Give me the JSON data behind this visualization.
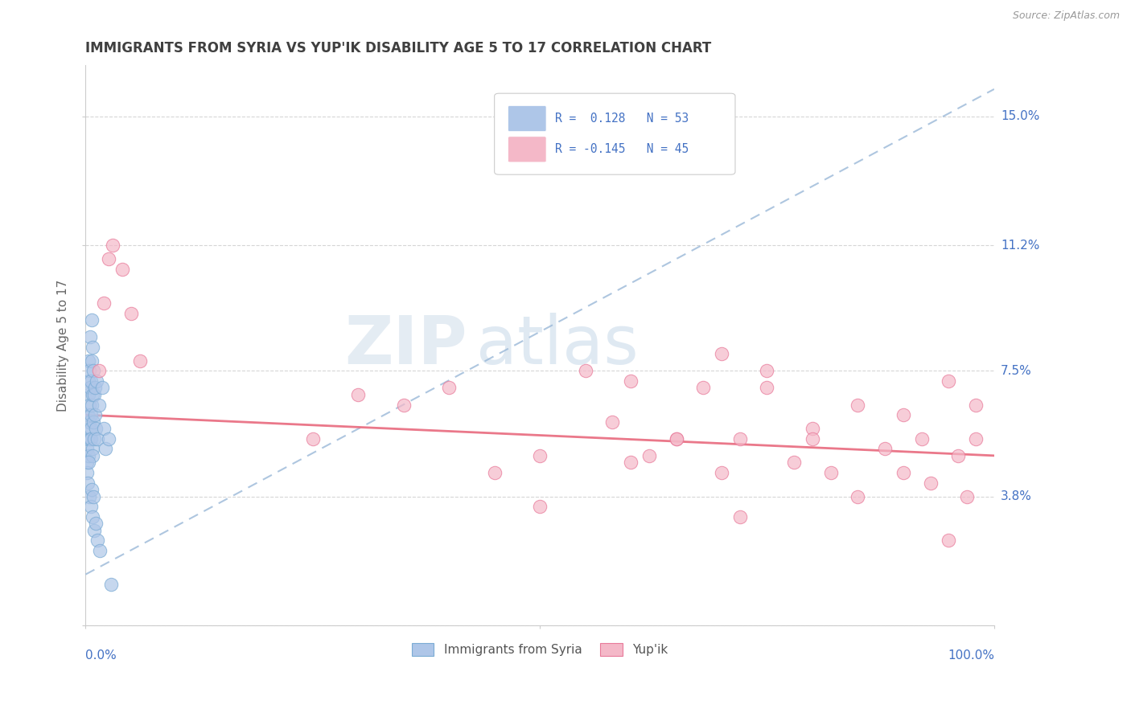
{
  "title": "IMMIGRANTS FROM SYRIA VS YUP'IK DISABILITY AGE 5 TO 17 CORRELATION CHART",
  "source": "Source: ZipAtlas.com",
  "ylabel": "Disability Age 5 to 17",
  "xlim": [
    0.0,
    100.0
  ],
  "ylim": [
    0.0,
    16.5
  ],
  "yticks": [
    0.0,
    3.8,
    7.5,
    11.2,
    15.0
  ],
  "ytick_labels": [
    "",
    "3.8%",
    "7.5%",
    "11.2%",
    "15.0%"
  ],
  "axis_label_color": "#4472c4",
  "blue_color": "#aec6e8",
  "blue_edge_color": "#7aabd4",
  "pink_color": "#f4b8c8",
  "pink_edge_color": "#e87a9a",
  "trend_blue_color": "#9ab8d8",
  "trend_pink_color": "#e8697d",
  "background_color": "#ffffff",
  "title_color": "#404040",
  "ylabel_color": "#666666",
  "watermark_zip_color": "#c8d8e8",
  "watermark_atlas_color": "#b8cce4",
  "blue_trend_start_y": 1.5,
  "blue_trend_end_y": 15.8,
  "pink_trend_start_y": 6.2,
  "pink_trend_end_y": 5.0,
  "syria_x": [
    0.15,
    0.18,
    0.22,
    0.25,
    0.28,
    0.3,
    0.32,
    0.35,
    0.38,
    0.4,
    0.42,
    0.45,
    0.48,
    0.5,
    0.52,
    0.55,
    0.58,
    0.6,
    0.62,
    0.65,
    0.68,
    0.7,
    0.72,
    0.75,
    0.78,
    0.8,
    0.85,
    0.88,
    0.9,
    0.95,
    1.0,
    1.05,
    1.1,
    1.2,
    1.3,
    1.5,
    1.8,
    2.0,
    2.2,
    2.5,
    0.12,
    0.2,
    0.35,
    0.42,
    0.55,
    0.65,
    0.75,
    0.85,
    0.95,
    1.1,
    1.3,
    1.6,
    2.8
  ],
  "syria_y": [
    5.2,
    4.8,
    6.2,
    5.5,
    7.2,
    6.8,
    5.0,
    7.8,
    6.5,
    5.8,
    7.5,
    6.0,
    5.5,
    8.5,
    7.0,
    6.2,
    5.8,
    7.2,
    5.5,
    9.0,
    6.5,
    7.8,
    5.2,
    6.8,
    5.0,
    8.2,
    7.5,
    6.0,
    5.5,
    6.8,
    6.2,
    7.0,
    5.8,
    7.2,
    5.5,
    6.5,
    7.0,
    5.8,
    5.2,
    5.5,
    4.5,
    4.2,
    4.8,
    3.8,
    3.5,
    4.0,
    3.2,
    3.8,
    2.8,
    3.0,
    2.5,
    2.2,
    1.2
  ],
  "yupik_x": [
    1.5,
    2.0,
    2.5,
    3.0,
    4.0,
    5.0,
    6.0,
    25.0,
    30.0,
    35.0,
    40.0,
    45.0,
    50.0,
    55.0,
    58.0,
    60.0,
    62.0,
    65.0,
    68.0,
    70.0,
    72.0,
    75.0,
    78.0,
    80.0,
    82.0,
    85.0,
    88.0,
    90.0,
    92.0,
    93.0,
    95.0,
    96.0,
    97.0,
    98.0,
    60.0,
    65.0,
    70.0,
    72.0,
    75.0,
    80.0,
    85.0,
    90.0,
    95.0,
    98.0,
    50.0
  ],
  "yupik_y": [
    7.5,
    9.5,
    10.8,
    11.2,
    10.5,
    9.2,
    7.8,
    5.5,
    6.8,
    6.5,
    7.0,
    4.5,
    5.0,
    7.5,
    6.0,
    7.2,
    5.0,
    5.5,
    7.0,
    8.0,
    5.5,
    7.5,
    4.8,
    5.8,
    4.5,
    6.5,
    5.2,
    6.2,
    5.5,
    4.2,
    7.2,
    5.0,
    3.8,
    6.5,
    4.8,
    5.5,
    4.5,
    3.2,
    7.0,
    5.5,
    3.8,
    4.5,
    2.5,
    5.5,
    3.5
  ]
}
